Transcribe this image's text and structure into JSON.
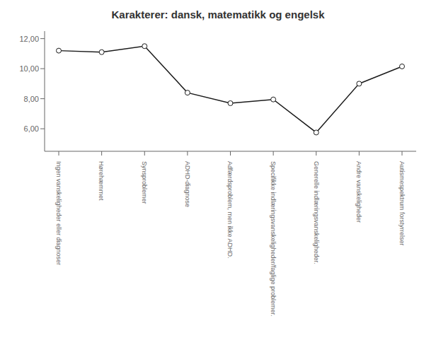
{
  "chart_data": {
    "type": "line",
    "title": "Karakterer: dansk, matematikk og engelsk",
    "categories": [
      "Ingen vanskeligheder eller diagnoser",
      "Hørehæmmet",
      "Synsproblemer",
      "ADHD-diagnose",
      "Adfærdsproblem, men ikke ADHD.",
      "Specifikke indlæringsvanskeligheder/faglige problemer.",
      "Generelle indlæringsvanskeligheder.",
      "Andre vanskeligheder",
      "Autismespektrum forstyrrelser"
    ],
    "values": [
      11.2,
      11.1,
      11.5,
      8.4,
      7.7,
      7.95,
      5.75,
      9.0,
      10.15
    ],
    "ylim": [
      4.5,
      12.5
    ],
    "yticks": [
      {
        "value": 6.0,
        "label": "6,00"
      },
      {
        "value": 8.0,
        "label": "8,00"
      },
      {
        "value": 10.0,
        "label": "10,00"
      },
      {
        "value": 12.0,
        "label": "12,00"
      }
    ],
    "color": "#1a1a1a",
    "marker": "circle",
    "grid": false
  }
}
